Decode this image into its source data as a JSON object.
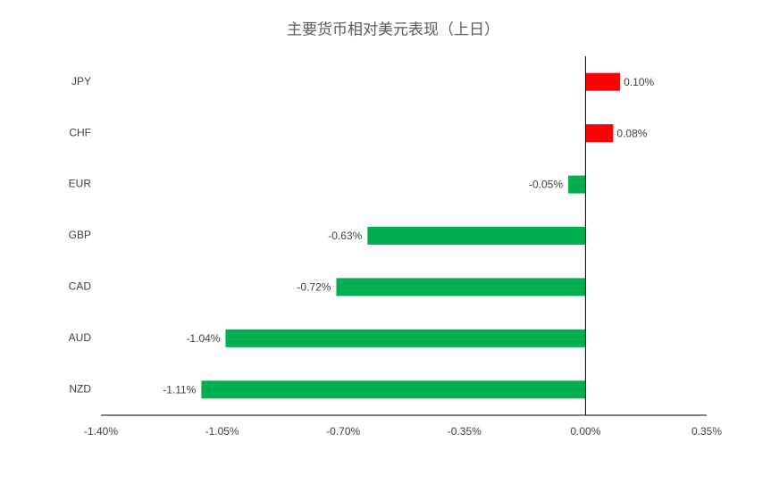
{
  "chart_data": {
    "type": "hbar",
    "title": "主要货币相对美元表现（上日）",
    "categories": [
      "JPY",
      "CHF",
      "EUR",
      "GBP",
      "CAD",
      "AUD",
      "NZD"
    ],
    "values": [
      0.1,
      0.08,
      -0.05,
      -0.63,
      -0.72,
      -1.04,
      -1.11
    ],
    "value_labels": [
      "0.10%",
      "0.08%",
      "-0.05%",
      "-0.63%",
      "-0.72%",
      "-1.04%",
      "-1.11%"
    ],
    "colors": [
      "#ff0000",
      "#ff0000",
      "#00b050",
      "#00b050",
      "#00b050",
      "#00b050",
      "#00b050"
    ],
    "xlim": [
      -1.4,
      0.35
    ],
    "xticks": [
      {
        "value": -1.4,
        "label": "-1.40%"
      },
      {
        "value": -1.05,
        "label": "-1.05%"
      },
      {
        "value": -0.7,
        "label": "-0.70%"
      },
      {
        "value": -0.35,
        "label": "-0.35%"
      },
      {
        "value": 0,
        "label": "0.00%"
      },
      {
        "value": 0.35,
        "label": "0.35%"
      }
    ]
  }
}
